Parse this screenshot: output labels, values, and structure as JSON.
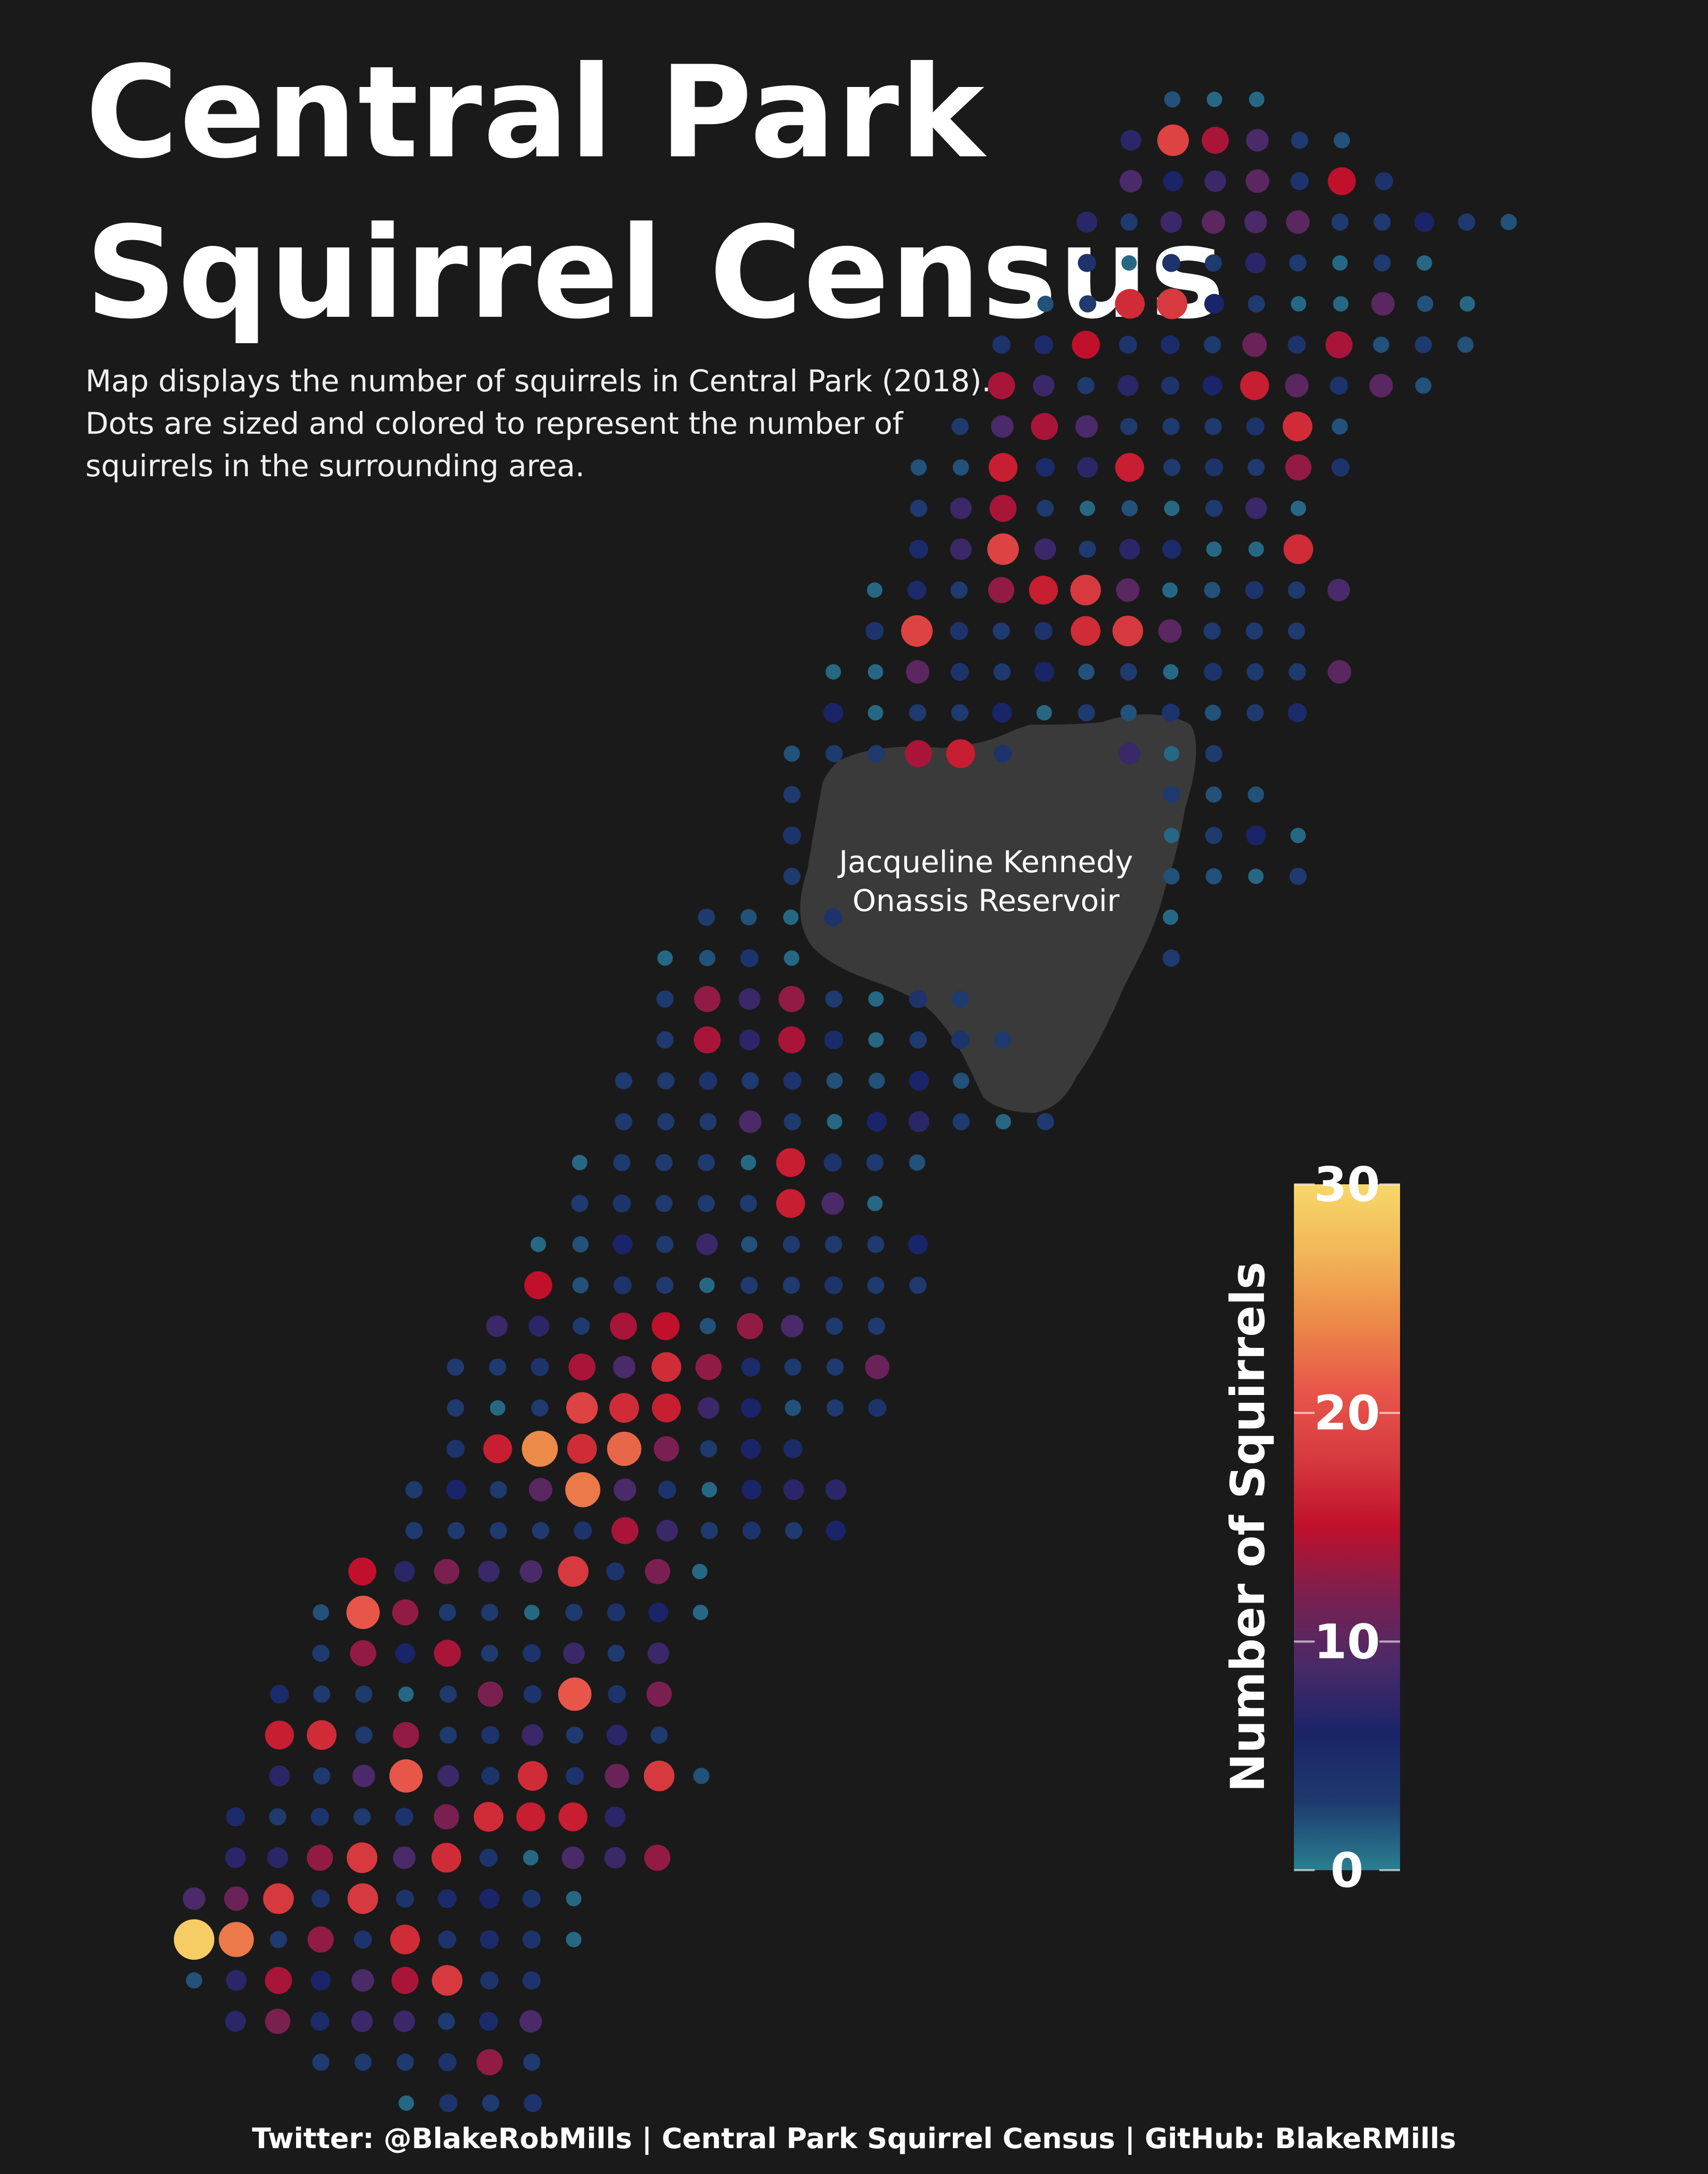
{
  "title": {
    "line1": "Central Park",
    "line2": "Squirrel Census"
  },
  "subtitle": {
    "line1": "Map displays the number of squirrels in Central Park (2018).",
    "line2": "Dots are sized and colored to represent the number of",
    "line3": "squirrels in the surrounding area."
  },
  "reservoir": {
    "line1": "Jacqueline Kennedy",
    "line2": "Onassis Reservoir",
    "color": "#3a3a3a"
  },
  "legend": {
    "title": "Number of Squirrels",
    "ticks": [
      "0",
      "10",
      "20",
      "30"
    ],
    "tick_values": [
      0,
      10,
      20,
      30
    ],
    "range": [
      0,
      30
    ],
    "colors": [
      "#2a7f8f",
      "#1e3a6e",
      "#1a2468",
      "#4a2a68",
      "#7a2050",
      "#c0102c",
      "#d63a3e",
      "#e8564a",
      "#ec8a48",
      "#f2b658",
      "#f7d86a"
    ]
  },
  "caption": "Twitter: @BlakeRobMills | Central Park Squirrel Census | GitHub: BlakeRMills",
  "background_color": "#1a1a1a",
  "chart_data": {
    "type": "dot-grid-map",
    "description_encoding": "value = number of squirrels per grid cell (0-30)",
    "value_range": [
      0,
      30
    ],
    "note": "estimated per-row counts read from dot color/size, ordered row by row from north to south",
    "rows": [
      [
        2,
        1,
        1
      ],
      [
        7,
        19,
        14,
        9,
        3,
        2
      ],
      [
        9,
        6,
        8,
        10,
        4,
        15,
        4
      ],
      [
        7,
        3,
        8,
        10,
        9,
        10,
        3,
        3,
        6,
        3,
        2
      ],
      [
        4,
        1,
        4,
        3,
        7,
        3,
        1,
        3,
        1
      ],
      [
        2,
        3,
        17,
        18,
        6,
        3,
        1,
        1,
        10,
        2,
        1
      ],
      [
        4,
        5,
        15,
        4,
        5,
        3,
        11,
        4,
        14,
        2,
        3,
        2
      ],
      [
        14,
        8,
        3,
        7,
        4,
        6,
        16,
        10,
        4,
        10,
        2
      ],
      [
        3,
        9,
        14,
        9,
        3,
        3,
        3,
        4,
        17,
        2
      ],
      [
        2,
        2,
        16,
        5,
        7,
        16,
        3,
        4,
        3,
        13,
        4
      ],
      [
        3,
        8,
        14,
        3,
        1,
        2,
        1,
        3,
        8,
        1
      ],
      [
        5,
        8,
        19,
        8,
        3,
        7,
        5,
        1,
        1,
        17
      ],
      [
        1,
        5,
        3,
        13,
        16,
        18,
        10,
        1,
        2,
        4,
        3,
        9
      ],
      [
        4,
        19,
        4,
        3,
        4,
        17,
        18,
        10,
        3,
        3,
        3
      ],
      [
        1,
        1,
        10,
        4,
        3,
        6,
        2,
        3,
        1,
        4,
        3,
        3,
        10
      ],
      [
        6,
        1,
        3,
        3,
        6,
        1,
        3,
        2,
        4,
        2,
        3,
        5
      ],
      [
        2,
        3,
        3,
        14,
        16,
        4,
        8,
        1,
        3
      ],
      [
        3,
        3,
        2,
        2
      ],
      [
        4,
        1,
        3,
        6,
        1
      ],
      [
        3,
        2,
        2,
        1,
        3
      ],
      [
        3,
        2,
        1,
        4,
        1
      ],
      [
        1,
        2,
        4,
        1,
        3
      ],
      [
        3,
        13,
        8,
        13,
        3,
        1,
        4,
        3
      ],
      [
        3,
        14,
        7,
        14,
        5,
        1,
        3,
        4,
        3
      ],
      [
        3,
        3,
        4,
        3,
        4,
        2,
        2,
        6,
        2
      ],
      [
        3,
        3,
        3,
        9,
        3,
        1,
        6,
        7,
        3,
        1,
        3
      ],
      [
        1,
        3,
        3,
        3,
        1,
        16,
        4,
        3,
        2
      ],
      [
        3,
        4,
        3,
        3,
        3,
        16,
        9,
        1
      ],
      [
        1,
        2,
        6,
        3,
        8,
        2,
        3,
        3,
        3,
        6
      ],
      [
        15,
        2,
        4,
        3,
        1,
        3,
        3,
        4,
        3,
        3
      ],
      [
        8,
        7,
        3,
        14,
        15,
        2,
        13,
        9,
        3,
        3
      ],
      [
        3,
        3,
        4,
        14,
        9,
        17,
        13,
        5,
        3,
        3,
        11
      ],
      [
        3,
        1,
        3,
        19,
        17,
        16,
        8,
        6,
        2,
        3,
        4
      ],
      [
        4,
        16,
        24,
        17,
        22,
        12,
        3,
        6,
        5
      ],
      [
        3,
        6,
        3,
        10,
        23,
        9,
        4,
        1,
        6,
        7,
        7
      ],
      [
        3,
        3,
        3,
        3,
        4,
        14,
        8,
        3,
        4,
        3,
        6
      ],
      [
        15,
        7,
        12,
        8,
        9,
        18,
        4,
        12,
        1
      ],
      [
        2,
        21,
        13,
        3,
        3,
        1,
        3,
        4,
        6,
        1
      ],
      [
        3,
        13,
        6,
        14,
        3,
        4,
        8,
        3,
        8
      ],
      [
        5,
        3,
        3,
        1,
        3,
        12,
        4,
        21,
        4,
        12
      ],
      [
        16,
        17,
        3,
        13,
        3,
        4,
        8,
        3,
        7,
        3
      ],
      [
        7,
        3,
        9,
        21,
        8,
        4,
        17,
        4,
        11,
        18,
        2
      ],
      [
        5,
        3,
        4,
        3,
        4,
        12,
        17,
        16,
        16,
        7
      ],
      [
        7,
        7,
        13,
        18,
        9,
        17,
        4,
        1,
        9,
        8,
        13
      ],
      [
        9,
        11,
        18,
        4,
        18,
        4,
        5,
        6,
        4,
        1
      ],
      [
        29,
        23,
        3,
        13,
        4,
        17,
        4,
        5,
        4,
        1
      ],
      [
        2,
        7,
        14,
        6,
        9,
        14,
        18,
        4,
        4
      ],
      [
        7,
        12,
        5,
        8,
        8,
        3,
        5,
        9
      ],
      [
        3,
        3,
        3,
        4,
        13,
        3
      ],
      [
        1,
        4,
        3,
        4
      ]
    ]
  }
}
